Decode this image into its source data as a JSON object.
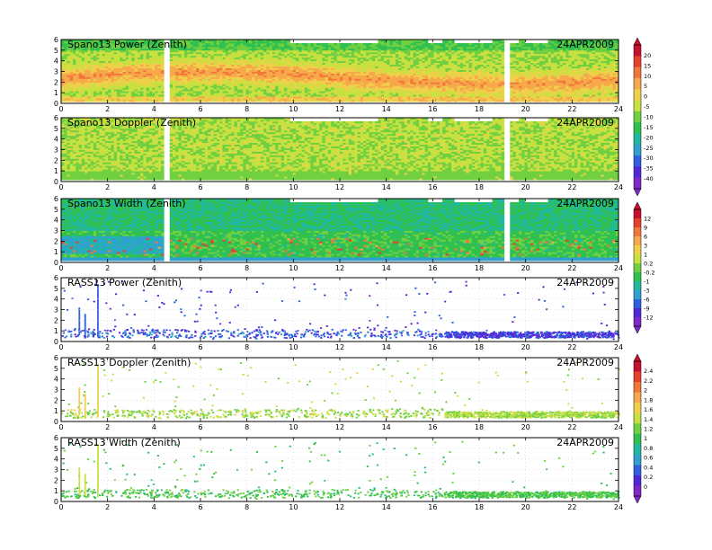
{
  "chart_data": [
    {
      "type": "heatmap",
      "title": "Spano13 Power (Zenith)",
      "date": "24APR2009",
      "xlim": [
        0,
        24
      ],
      "ylim": [
        0,
        6
      ],
      "xticks": [
        "0",
        "2",
        "4",
        "6",
        "8",
        "10",
        "12",
        "14",
        "16",
        "18",
        "20",
        "22",
        "24"
      ],
      "yticks": [
        "0",
        "1",
        "2",
        "3",
        "4",
        "5",
        "6"
      ],
      "colorbar_group": "power",
      "field": "power"
    },
    {
      "type": "heatmap",
      "title": "Spano13 Doppler (Zenith)",
      "date": "24APR2009",
      "xlim": [
        0,
        24
      ],
      "ylim": [
        0,
        6
      ],
      "xticks": [
        "0",
        "2",
        "4",
        "6",
        "8",
        "10",
        "12",
        "14",
        "16",
        "18",
        "20",
        "22",
        "24"
      ],
      "yticks": [
        "0",
        "1",
        "2",
        "3",
        "4",
        "5",
        "6"
      ],
      "colorbar_group": "power",
      "field": "doppler"
    },
    {
      "type": "heatmap",
      "title": "Spano13 Width (Zenith)",
      "date": "24APR2009",
      "xlim": [
        0,
        24
      ],
      "ylim": [
        0,
        6
      ],
      "xticks": [
        "0",
        "2",
        "4",
        "6",
        "8",
        "10",
        "12",
        "14",
        "16",
        "18",
        "20",
        "22",
        "24"
      ],
      "yticks": [
        "0",
        "1",
        "2",
        "3",
        "4",
        "5",
        "6"
      ],
      "colorbar_group": "width",
      "field": "width"
    },
    {
      "type": "heatmap",
      "title": "RASS13 Power (Zenith)",
      "date": "24APR2009",
      "xlim": [
        0,
        24
      ],
      "ylim": [
        0,
        6
      ],
      "xticks": [
        "0",
        "2",
        "4",
        "6",
        "8",
        "10",
        "12",
        "14",
        "16",
        "18",
        "20",
        "22",
        "24"
      ],
      "yticks": [
        "0",
        "1",
        "2",
        "3",
        "4",
        "5",
        "6"
      ],
      "colorbar_group": "width",
      "field": "rass_power"
    },
    {
      "type": "heatmap",
      "title": "RASS13 Doppler (Zenith)",
      "date": "24APR2009",
      "xlim": [
        0,
        24
      ],
      "ylim": [
        0,
        6
      ],
      "xticks": [
        "0",
        "2",
        "4",
        "6",
        "8",
        "10",
        "12",
        "14",
        "16",
        "18",
        "20",
        "22",
        "24"
      ],
      "yticks": [
        "0",
        "1",
        "2",
        "3",
        "4",
        "5",
        "6"
      ],
      "colorbar_group": "rass",
      "field": "rass_doppler"
    },
    {
      "type": "heatmap",
      "title": "RASS13 Width (Zenith)",
      "date": "24APR2009",
      "xlim": [
        0,
        24
      ],
      "ylim": [
        0,
        6
      ],
      "xticks": [
        "0",
        "2",
        "4",
        "6",
        "8",
        "10",
        "12",
        "14",
        "16",
        "18",
        "20",
        "22",
        "24"
      ],
      "yticks": [
        "0",
        "1",
        "2",
        "3",
        "4",
        "5",
        "6"
      ],
      "colorbar_group": "rass",
      "field": "rass_width"
    }
  ],
  "colorbars": [
    {
      "name": "power",
      "labels": [
        "20",
        "15",
        "10",
        "5",
        "0",
        "-5",
        "-10",
        "-15",
        "-20",
        "-25",
        "-30",
        "-35",
        "-40"
      ],
      "colors": [
        "#c8102e",
        "#e8402a",
        "#f2783a",
        "#f6a84a",
        "#f0d04a",
        "#c8e040",
        "#70d040",
        "#30c050",
        "#20b8a0",
        "#30a0d0",
        "#3060e0",
        "#5028d8",
        "#8028c8"
      ]
    },
    {
      "name": "width",
      "labels": [
        "12",
        "9",
        "6",
        "3",
        "1",
        "0.2",
        "-0.2",
        "-1",
        "-3",
        "-6",
        "-9",
        "-12"
      ],
      "colors": [
        "#c8102e",
        "#e8402a",
        "#f2783a",
        "#f6a84a",
        "#f0d04a",
        "#c8e040",
        "#70d040",
        "#30c050",
        "#20b8a0",
        "#30a0d0",
        "#3060e0",
        "#5028d8",
        "#8028c8"
      ]
    },
    {
      "name": "rass",
      "labels": [
        "2.4",
        "2.2",
        "2",
        "1.8",
        "1.6",
        "1.4",
        "1.2",
        "1",
        "0.8",
        "0.6",
        "0.4",
        "0.2",
        "0"
      ],
      "colors": [
        "#c8102e",
        "#e8402a",
        "#f2783a",
        "#f6a84a",
        "#f0d04a",
        "#c8e040",
        "#70d040",
        "#30c050",
        "#20b8a0",
        "#30a0d0",
        "#3060e0",
        "#5028d8",
        "#8028c8"
      ]
    }
  ]
}
